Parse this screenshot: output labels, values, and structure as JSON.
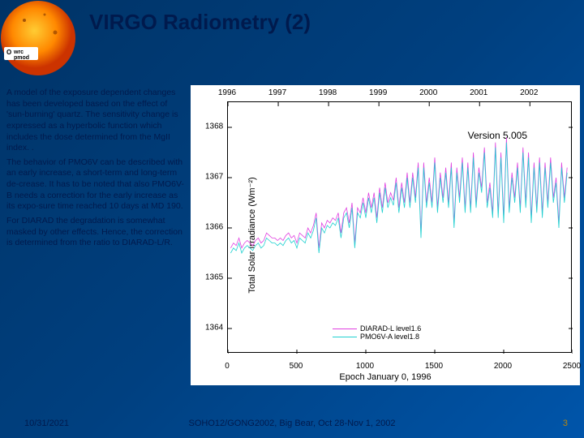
{
  "title": "VIRGO Radiometry (2)",
  "logo": {
    "label1": "wrc",
    "label2": "pmod"
  },
  "body": {
    "p1": "A model of the exposure dependent changes has been developed based on the effect of 'sun-burning' quartz. The sensitivity change is expressed as a hyperbolic function which includes the dose determined from the MgII index. .",
    "p2": "The behavior of PMO6V can be described with an early increase, a short-term  and long-term de-crease. It has to be noted that also PMO6V-B needs a correction for the early increase as its expo-sure time reached 10 days at MD 190.",
    "p3": "For DIARAD the degradation is somewhat masked by other effects. Hence, the correction is determined from the ratio to DIARAD-L/R."
  },
  "chart": {
    "type": "line",
    "ylabel": "Total Solar Irradiance (Wm⁻²)",
    "xlabel": "Epoch January 0, 1996",
    "version_text": "Version 5.005",
    "ylim": [
      1363.5,
      1368.5
    ],
    "yticks": [
      1364,
      1365,
      1366,
      1367,
      1368
    ],
    "xlim": [
      0,
      2500
    ],
    "xticks_bottom": [
      0,
      500,
      1000,
      1500,
      2000,
      2500
    ],
    "xticks_top": [
      1996,
      1997,
      1998,
      1999,
      2000,
      2001,
      2002
    ],
    "xticks_top_pos": [
      0,
      365,
      730,
      1095,
      1460,
      1825,
      2190
    ],
    "series": [
      {
        "name": "DIARAD-L level1.6",
        "color": "#e040e0",
        "data": [
          [
            20,
            1365.6
          ],
          [
            40,
            1365.7
          ],
          [
            60,
            1365.65
          ],
          [
            80,
            1365.8
          ],
          [
            100,
            1365.6
          ],
          [
            120,
            1365.7
          ],
          [
            140,
            1365.75
          ],
          [
            160,
            1365.7
          ],
          [
            180,
            1365.65
          ],
          [
            200,
            1365.75
          ],
          [
            220,
            1365.8
          ],
          [
            240,
            1365.7
          ],
          [
            260,
            1365.75
          ],
          [
            280,
            1365.9
          ],
          [
            300,
            1365.85
          ],
          [
            320,
            1365.8
          ],
          [
            340,
            1365.8
          ],
          [
            360,
            1365.75
          ],
          [
            380,
            1365.8
          ],
          [
            400,
            1365.75
          ],
          [
            420,
            1365.85
          ],
          [
            440,
            1365.9
          ],
          [
            460,
            1365.8
          ],
          [
            480,
            1365.85
          ],
          [
            500,
            1365.7
          ],
          [
            520,
            1365.9
          ],
          [
            540,
            1365.85
          ],
          [
            560,
            1365.8
          ],
          [
            580,
            1366.0
          ],
          [
            600,
            1365.9
          ],
          [
            620,
            1366.05
          ],
          [
            640,
            1366.3
          ],
          [
            660,
            1365.6
          ],
          [
            680,
            1366.1
          ],
          [
            700,
            1366.0
          ],
          [
            720,
            1366.15
          ],
          [
            740,
            1366.1
          ],
          [
            760,
            1366.2
          ],
          [
            780,
            1366.15
          ],
          [
            800,
            1366.3
          ],
          [
            820,
            1365.9
          ],
          [
            840,
            1366.3
          ],
          [
            860,
            1366.4
          ],
          [
            880,
            1366.1
          ],
          [
            900,
            1366.5
          ],
          [
            920,
            1365.7
          ],
          [
            940,
            1366.4
          ],
          [
            960,
            1366.3
          ],
          [
            980,
            1366.6
          ],
          [
            1000,
            1366.3
          ],
          [
            1020,
            1366.7
          ],
          [
            1040,
            1366.4
          ],
          [
            1060,
            1366.7
          ],
          [
            1080,
            1366.2
          ],
          [
            1100,
            1366.8
          ],
          [
            1120,
            1366.4
          ],
          [
            1140,
            1366.9
          ],
          [
            1160,
            1366.5
          ],
          [
            1180,
            1366.7
          ],
          [
            1200,
            1366.55
          ],
          [
            1220,
            1367.0
          ],
          [
            1240,
            1366.4
          ],
          [
            1260,
            1366.9
          ],
          [
            1280,
            1366.5
          ],
          [
            1300,
            1367.1
          ],
          [
            1320,
            1366.5
          ],
          [
            1340,
            1367.1
          ],
          [
            1360,
            1366.6
          ],
          [
            1380,
            1367.3
          ],
          [
            1400,
            1365.9
          ],
          [
            1420,
            1367.3
          ],
          [
            1440,
            1366.5
          ],
          [
            1460,
            1367.0
          ],
          [
            1480,
            1366.5
          ],
          [
            1500,
            1367.4
          ],
          [
            1520,
            1366.4
          ],
          [
            1540,
            1367.1
          ],
          [
            1560,
            1366.6
          ],
          [
            1580,
            1367.2
          ],
          [
            1600,
            1366.5
          ],
          [
            1620,
            1367.3
          ],
          [
            1640,
            1366.1
          ],
          [
            1660,
            1367.2
          ],
          [
            1680,
            1366.6
          ],
          [
            1700,
            1367.4
          ],
          [
            1720,
            1366.4
          ],
          [
            1740,
            1367.3
          ],
          [
            1760,
            1366.4
          ],
          [
            1780,
            1367.5
          ],
          [
            1800,
            1366.5
          ],
          [
            1820,
            1367.2
          ],
          [
            1840,
            1366.8
          ],
          [
            1860,
            1367.6
          ],
          [
            1880,
            1366.5
          ],
          [
            1900,
            1366.9
          ],
          [
            1920,
            1366.3
          ],
          [
            1940,
            1367.7
          ],
          [
            1960,
            1366.3
          ],
          [
            1980,
            1367.5
          ],
          [
            2000,
            1366.2
          ],
          [
            2020,
            1367.8
          ],
          [
            2040,
            1366.4
          ],
          [
            2060,
            1367.1
          ],
          [
            2080,
            1366.6
          ],
          [
            2100,
            1367.3
          ],
          [
            2120,
            1366.4
          ],
          [
            2140,
            1367.6
          ],
          [
            2160,
            1366.5
          ],
          [
            2180,
            1367.5
          ],
          [
            2200,
            1366.2
          ],
          [
            2220,
            1367.3
          ],
          [
            2240,
            1366.4
          ],
          [
            2260,
            1367.4
          ],
          [
            2280,
            1366.3
          ],
          [
            2300,
            1367.3
          ],
          [
            2320,
            1366.5
          ],
          [
            2340,
            1367.4
          ],
          [
            2360,
            1366.6
          ],
          [
            2380,
            1367.0
          ],
          [
            2400,
            1366.1
          ],
          [
            2420,
            1367.3
          ],
          [
            2440,
            1366.6
          ],
          [
            2460,
            1367.2
          ]
        ]
      },
      {
        "name": "PMO6V-A level1.8",
        "color": "#20d0d0",
        "data": [
          [
            20,
            1365.5
          ],
          [
            40,
            1365.6
          ],
          [
            60,
            1365.55
          ],
          [
            80,
            1365.7
          ],
          [
            100,
            1365.5
          ],
          [
            120,
            1365.6
          ],
          [
            140,
            1365.65
          ],
          [
            160,
            1365.6
          ],
          [
            180,
            1365.55
          ],
          [
            200,
            1365.65
          ],
          [
            220,
            1365.7
          ],
          [
            240,
            1365.6
          ],
          [
            260,
            1365.65
          ],
          [
            280,
            1365.8
          ],
          [
            300,
            1365.75
          ],
          [
            320,
            1365.7
          ],
          [
            340,
            1365.7
          ],
          [
            360,
            1365.65
          ],
          [
            380,
            1365.7
          ],
          [
            400,
            1365.65
          ],
          [
            420,
            1365.75
          ],
          [
            440,
            1365.8
          ],
          [
            460,
            1365.7
          ],
          [
            480,
            1365.75
          ],
          [
            500,
            1365.6
          ],
          [
            520,
            1365.8
          ],
          [
            540,
            1365.75
          ],
          [
            560,
            1365.7
          ],
          [
            580,
            1365.9
          ],
          [
            600,
            1365.8
          ],
          [
            620,
            1365.95
          ],
          [
            640,
            1366.2
          ],
          [
            660,
            1365.5
          ],
          [
            680,
            1366.0
          ],
          [
            700,
            1365.9
          ],
          [
            720,
            1366.05
          ],
          [
            740,
            1366.0
          ],
          [
            760,
            1366.1
          ],
          [
            780,
            1366.05
          ],
          [
            800,
            1366.2
          ],
          [
            820,
            1365.8
          ],
          [
            840,
            1366.2
          ],
          [
            860,
            1366.3
          ],
          [
            880,
            1366.0
          ],
          [
            900,
            1366.4
          ],
          [
            920,
            1365.6
          ],
          [
            940,
            1366.3
          ],
          [
            960,
            1366.2
          ],
          [
            980,
            1366.5
          ],
          [
            1000,
            1366.2
          ],
          [
            1020,
            1366.6
          ],
          [
            1040,
            1366.3
          ],
          [
            1060,
            1366.6
          ],
          [
            1080,
            1366.1
          ],
          [
            1100,
            1366.7
          ],
          [
            1120,
            1366.3
          ],
          [
            1140,
            1366.8
          ],
          [
            1160,
            1366.4
          ],
          [
            1180,
            1366.6
          ],
          [
            1200,
            1366.45
          ],
          [
            1220,
            1366.9
          ],
          [
            1240,
            1366.3
          ],
          [
            1260,
            1366.8
          ],
          [
            1280,
            1366.4
          ],
          [
            1300,
            1367.0
          ],
          [
            1320,
            1366.4
          ],
          [
            1340,
            1367.0
          ],
          [
            1360,
            1366.5
          ],
          [
            1380,
            1367.2
          ],
          [
            1400,
            1365.8
          ],
          [
            1420,
            1367.2
          ],
          [
            1440,
            1366.4
          ],
          [
            1460,
            1366.9
          ],
          [
            1480,
            1366.4
          ],
          [
            1500,
            1367.3
          ],
          [
            1520,
            1366.3
          ],
          [
            1540,
            1367.0
          ],
          [
            1560,
            1366.5
          ],
          [
            1580,
            1367.1
          ],
          [
            1600,
            1366.4
          ],
          [
            1620,
            1367.2
          ],
          [
            1640,
            1366.0
          ],
          [
            1660,
            1367.1
          ],
          [
            1680,
            1366.5
          ],
          [
            1700,
            1367.3
          ],
          [
            1720,
            1366.3
          ],
          [
            1740,
            1367.2
          ],
          [
            1760,
            1366.3
          ],
          [
            1780,
            1367.4
          ],
          [
            1800,
            1366.4
          ],
          [
            1820,
            1367.1
          ],
          [
            1840,
            1366.7
          ],
          [
            1860,
            1367.5
          ],
          [
            1880,
            1366.4
          ],
          [
            1900,
            1366.8
          ],
          [
            1920,
            1366.2
          ],
          [
            1940,
            1367.6
          ],
          [
            1960,
            1366.2
          ],
          [
            1980,
            1367.4
          ],
          [
            2000,
            1366.1
          ],
          [
            2020,
            1367.7
          ],
          [
            2040,
            1366.3
          ],
          [
            2060,
            1367.0
          ],
          [
            2080,
            1366.5
          ],
          [
            2100,
            1367.2
          ],
          [
            2120,
            1366.3
          ],
          [
            2140,
            1367.5
          ],
          [
            2160,
            1366.4
          ],
          [
            2180,
            1367.4
          ],
          [
            2200,
            1366.1
          ],
          [
            2220,
            1367.2
          ],
          [
            2240,
            1366.3
          ],
          [
            2260,
            1367.3
          ],
          [
            2280,
            1366.2
          ],
          [
            2300,
            1367.2
          ],
          [
            2320,
            1366.4
          ],
          [
            2340,
            1367.3
          ],
          [
            2360,
            1366.5
          ],
          [
            2380,
            1366.9
          ],
          [
            2400,
            1366.0
          ],
          [
            2420,
            1367.2
          ],
          [
            2440,
            1366.5
          ],
          [
            2460,
            1367.1
          ]
        ]
      }
    ]
  },
  "footer": {
    "date": "10/31/2021",
    "center": "SOHO12/GONG2002, Big Bear, Oct 28-Nov 1, 2002",
    "page": "3"
  }
}
